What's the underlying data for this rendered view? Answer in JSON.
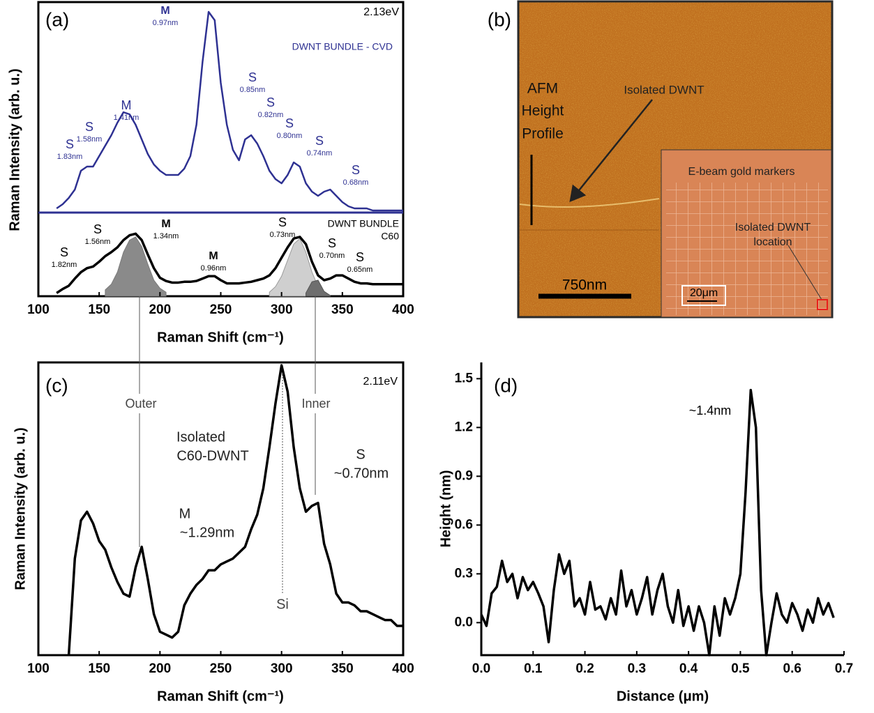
{
  "chart_data": [
    {
      "type": "line",
      "y_label": "Raman Intensity (arb. u.)",
      "annotations": [
        "(a)",
        "2.13eV",
        "DWNT BUNDLE - CVD"
      ],
      "peak_labels": [
        {
          "label": "S",
          "size": "1.83nm"
        },
        {
          "label": "S",
          "size": "1.58nm"
        },
        {
          "label": "M",
          "size": "1.41nm"
        },
        {
          "label": "M",
          "size": "0.97nm"
        },
        {
          "label": "S",
          "size": "0.85nm"
        },
        {
          "label": "S",
          "size": "0.82nm"
        },
        {
          "label": "S",
          "size": "0.80nm"
        },
        {
          "label": "S",
          "size": "0.74nm"
        },
        {
          "label": "S",
          "size": "0.68nm"
        }
      ],
      "xlim": [
        100,
        400
      ],
      "ylim": [
        0,
        100
      ],
      "x": [
        115,
        120,
        125,
        130,
        135,
        140,
        145,
        150,
        155,
        160,
        165,
        170,
        175,
        180,
        185,
        190,
        195,
        200,
        205,
        210,
        215,
        220,
        225,
        230,
        235,
        240,
        245,
        250,
        255,
        260,
        265,
        270,
        275,
        280,
        285,
        290,
        295,
        300,
        305,
        310,
        315,
        320,
        325,
        330,
        335,
        340,
        345,
        350,
        355,
        360,
        365,
        370,
        375,
        380,
        385,
        390,
        395,
        400
      ],
      "series": [
        {
          "color": "#2e3192",
          "values": [
            2,
            4,
            7,
            11,
            20,
            22,
            22,
            27,
            32,
            37,
            43,
            48,
            47,
            42,
            35,
            28,
            23,
            20,
            18,
            18,
            18,
            21,
            27,
            42,
            72,
            96,
            92,
            62,
            42,
            30,
            25,
            35,
            37,
            33,
            27,
            20,
            16,
            14,
            18,
            24,
            22,
            14,
            10,
            8,
            10,
            11,
            8,
            5,
            3,
            2,
            2,
            2,
            1,
            1,
            1,
            1,
            1,
            1
          ]
        }
      ]
    },
    {
      "type": "line",
      "x_label": "Raman Shift (cm⁻¹)",
      "annotations": [
        "DWNT BUNDLE",
        "C60"
      ],
      "peak_labels": [
        {
          "label": "S",
          "size": "1.82nm"
        },
        {
          "label": "S",
          "size": "1.56nm"
        },
        {
          "label": "M",
          "size": "1.34nm"
        },
        {
          "label": "M",
          "size": "0.96nm"
        },
        {
          "label": "S",
          "size": "0.73nm"
        },
        {
          "label": "S",
          "size": "0.70nm"
        },
        {
          "label": "S",
          "size": "0.65nm"
        }
      ],
      "xlim": [
        100,
        400
      ],
      "ylim": [
        0,
        100
      ],
      "xticks": [
        100,
        150,
        200,
        250,
        300,
        350,
        400
      ],
      "x": [
        115,
        120,
        125,
        130,
        135,
        140,
        145,
        150,
        155,
        160,
        165,
        170,
        175,
        180,
        185,
        190,
        195,
        200,
        205,
        210,
        215,
        220,
        225,
        230,
        235,
        240,
        245,
        250,
        255,
        260,
        265,
        270,
        275,
        280,
        285,
        290,
        295,
        300,
        305,
        310,
        315,
        320,
        325,
        330,
        335,
        340,
        345,
        350,
        355,
        360,
        365,
        370,
        375,
        380,
        385,
        390,
        395,
        400
      ],
      "series": [
        {
          "color": "#7a7a7a",
          "fill": "#8a8a8a",
          "x": [
            155,
            160,
            165,
            170,
            175,
            180,
            185,
            190,
            195,
            200,
            205
          ],
          "values": [
            8,
            15,
            30,
            55,
            70,
            74,
            62,
            40,
            20,
            10,
            5
          ]
        },
        {
          "color": "#9a9a9a",
          "fill": "#cfcfcf",
          "x": [
            290,
            295,
            300,
            305,
            310,
            315,
            320,
            325,
            330,
            335
          ],
          "values": [
            5,
            12,
            25,
            45,
            65,
            72,
            55,
            30,
            12,
            5
          ]
        },
        {
          "color": "#555555",
          "fill": "#6e6e6e",
          "x": [
            320,
            325,
            330,
            335,
            340
          ],
          "values": [
            4,
            18,
            20,
            6,
            1
          ]
        },
        {
          "color": "#000000",
          "values": [
            4,
            9,
            13,
            22,
            30,
            35,
            37,
            43,
            50,
            55,
            61,
            70,
            76,
            78,
            70,
            52,
            35,
            23,
            19,
            17,
            17,
            18,
            18,
            19,
            22,
            25,
            25,
            20,
            16,
            16,
            16,
            17,
            18,
            20,
            22,
            26,
            35,
            48,
            61,
            72,
            74,
            65,
            43,
            26,
            20,
            22,
            26,
            26,
            22,
            18,
            16,
            16,
            15,
            15,
            15,
            15,
            15,
            15
          ]
        }
      ]
    },
    {
      "type": "line",
      "x_label": "Raman Shift (cm⁻¹)",
      "y_label": "Raman Intensity (arb. u.)",
      "annotations": [
        "(c)",
        "2.11eV",
        "Outer",
        "Inner",
        "Isolated",
        "C60-DWNT",
        "M",
        "~1.29nm",
        "S",
        "~0.70nm",
        "Si"
      ],
      "xlim": [
        100,
        400
      ],
      "ylim": [
        0,
        100
      ],
      "xticks": [
        100,
        150,
        200,
        250,
        300,
        350,
        400
      ],
      "x": [
        125,
        130,
        135,
        140,
        145,
        150,
        155,
        160,
        165,
        170,
        175,
        180,
        185,
        190,
        195,
        200,
        205,
        210,
        215,
        220,
        225,
        230,
        235,
        240,
        245,
        250,
        255,
        260,
        265,
        270,
        275,
        280,
        285,
        290,
        295,
        300,
        305,
        310,
        315,
        320,
        325,
        330,
        335,
        340,
        345,
        350,
        355,
        360,
        365,
        370,
        375,
        380,
        385,
        390,
        395,
        400
      ],
      "series": [
        {
          "color": "#000000",
          "values": [
            0,
            33,
            46,
            49,
            45,
            39,
            36,
            30,
            25,
            21,
            20,
            30,
            37,
            26,
            14,
            8,
            7,
            6,
            8,
            17,
            21,
            24,
            26,
            29,
            29,
            31,
            32,
            33,
            35,
            37,
            43,
            48,
            57,
            71,
            86,
            99,
            90,
            71,
            57,
            49,
            51,
            52,
            38,
            31,
            21,
            18,
            18,
            17,
            15,
            15,
            14,
            13,
            12,
            12,
            10,
            10
          ]
        }
      ]
    },
    {
      "type": "line",
      "x_label": "Distance (μm)",
      "y_label": "Height (nm)",
      "annotations": [
        "(d)",
        "~1.4nm"
      ],
      "xlim": [
        0,
        0.7
      ],
      "ylim": [
        -0.2,
        1.6
      ],
      "xticks": [
        {
          "value": 0,
          "label": "0.0"
        },
        0.1,
        0.2,
        0.3,
        0.4,
        0.5,
        0.6,
        0.7
      ],
      "yticks": [
        {
          "value": 0,
          "label": "0.0"
        },
        0.3,
        0.6,
        0.9,
        1.2,
        1.5
      ],
      "x": [
        0,
        0.01,
        0.02,
        0.03,
        0.04,
        0.05,
        0.06,
        0.07,
        0.08,
        0.09,
        0.1,
        0.11,
        0.12,
        0.13,
        0.14,
        0.15,
        0.16,
        0.17,
        0.18,
        0.19,
        0.2,
        0.21,
        0.22,
        0.23,
        0.24,
        0.25,
        0.26,
        0.27,
        0.28,
        0.29,
        0.3,
        0.31,
        0.32,
        0.33,
        0.34,
        0.35,
        0.36,
        0.37,
        0.38,
        0.39,
        0.4,
        0.41,
        0.42,
        0.43,
        0.44,
        0.45,
        0.46,
        0.47,
        0.48,
        0.49,
        0.5,
        0.51,
        0.52,
        0.53,
        0.54,
        0.55,
        0.56,
        0.57,
        0.58,
        0.59,
        0.6,
        0.61,
        0.62,
        0.63,
        0.64,
        0.65,
        0.66,
        0.67,
        0.68
      ],
      "series": [
        {
          "color": "#000000",
          "values": [
            0.05,
            -0.02,
            0.18,
            0.22,
            0.38,
            0.25,
            0.3,
            0.15,
            0.28,
            0.2,
            0.25,
            0.18,
            0.1,
            -0.12,
            0.2,
            0.42,
            0.3,
            0.38,
            0.1,
            0.15,
            0.05,
            0.25,
            0.08,
            0.1,
            0.02,
            0.15,
            0.05,
            0.32,
            0.1,
            0.2,
            0.05,
            0.15,
            0.28,
            0.05,
            0.2,
            0.3,
            0.1,
            0,
            0.2,
            -0.02,
            0.1,
            -0.05,
            0.1,
            0,
            -0.2,
            0.1,
            -0.08,
            0.15,
            0.05,
            0.15,
            0.3,
            0.8,
            1.43,
            1.2,
            0.2,
            -0.2,
            0,
            0.18,
            0.05,
            0,
            0.12,
            0.05,
            -0.05,
            0.08,
            0,
            0.15,
            0.05,
            0.12,
            0.03
          ]
        }
      ]
    }
  ],
  "image_panel": {
    "label": "(b)",
    "profile_label": [
      "AFM",
      "Height",
      "Profile"
    ],
    "arrow_label": "Isolated DWNT",
    "scale_bar": "750nm",
    "inset": {
      "title": "E-beam gold markers",
      "location_label": [
        "Isolated DWNT",
        "location"
      ],
      "scale_bar": "20μm"
    }
  }
}
